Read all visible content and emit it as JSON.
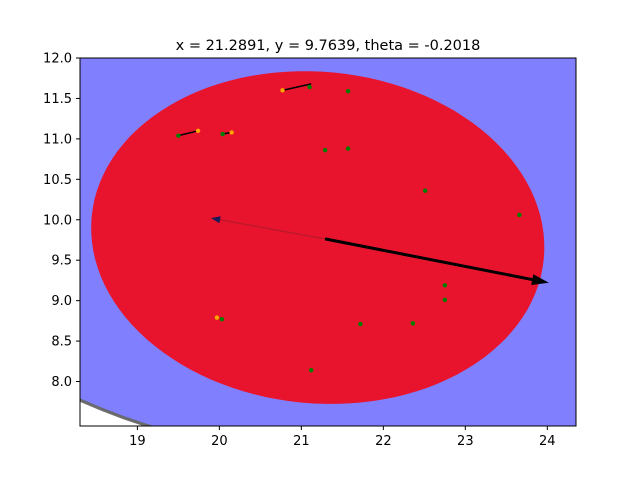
{
  "chart_data": {
    "type": "scatter",
    "title": "x = 21.2891, y = 9.7639, theta = -0.2018",
    "xlabel": "",
    "ylabel": "",
    "xlim": [
      18.3,
      24.35
    ],
    "ylim": [
      7.45,
      12.0
    ],
    "grid": false,
    "x_ticks": [
      19,
      20,
      21,
      22,
      23,
      24
    ],
    "x_tick_labels": [
      "19",
      "20",
      "21",
      "22",
      "23",
      "24"
    ],
    "y_ticks": [
      8.0,
      8.5,
      9.0,
      9.5,
      10.0,
      10.5,
      11.0,
      11.5,
      12.0
    ],
    "y_tick_labels": [
      "8.0",
      "8.5",
      "9.0",
      "9.5",
      "10.0",
      "10.5",
      "11.0",
      "11.5",
      "12.0"
    ],
    "pose": {
      "x": 21.2891,
      "y": 9.7639,
      "theta": -0.2018
    },
    "outer_ellipse": {
      "cx": 21.33,
      "cy": 10.25,
      "rx": 5.48,
      "ry": 3.2,
      "angle_deg": -5.5,
      "fill": "#8080ff",
      "edge": "#666666"
    },
    "inner_ellipse": {
      "cx": 21.2,
      "cy": 9.78,
      "rx": 2.77,
      "ry": 2.05,
      "angle_deg": -5.5,
      "fill": "#e8142d"
    },
    "heading_arrow": {
      "from": [
        21.2891,
        9.7639
      ],
      "to": [
        24.02,
        9.22
      ],
      "color": "#000000"
    },
    "back_line": {
      "from": [
        21.2891,
        9.7639
      ],
      "to": [
        19.9,
        10.02
      ],
      "color": "#c0182a"
    },
    "green_points": [
      [
        21.1,
        11.64
      ],
      [
        21.57,
        11.59
      ],
      [
        20.04,
        11.06
      ],
      [
        19.5,
        11.04
      ],
      [
        21.29,
        10.86
      ],
      [
        21.57,
        10.88
      ],
      [
        22.51,
        10.36
      ],
      [
        23.66,
        10.06
      ],
      [
        22.75,
        9.19
      ],
      [
        22.75,
        9.01
      ],
      [
        20.03,
        8.77
      ],
      [
        21.72,
        8.71
      ],
      [
        22.36,
        8.72
      ],
      [
        21.12,
        8.14
      ]
    ],
    "orange_points": [
      [
        20.77,
        11.6
      ],
      [
        19.74,
        11.1
      ],
      [
        20.15,
        11.08
      ],
      [
        19.97,
        8.79
      ]
    ],
    "segments": [
      {
        "from": [
          20.77,
          11.6
        ],
        "to": [
          21.12,
          11.68
        ]
      },
      {
        "from": [
          19.5,
          11.04
        ],
        "to": [
          19.74,
          11.1
        ]
      },
      {
        "from": [
          20.04,
          11.06
        ],
        "to": [
          20.15,
          11.08
        ]
      }
    ],
    "colors": {
      "green": "#008000",
      "orange": "#ffa500",
      "axes": "#000000"
    }
  }
}
